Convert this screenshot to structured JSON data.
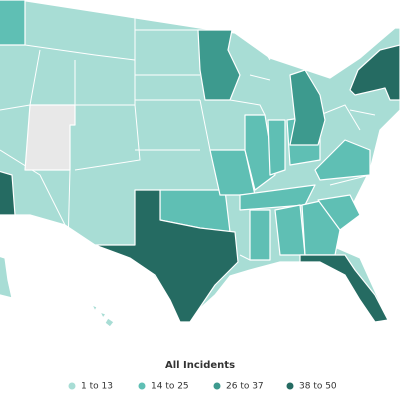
{
  "legend": {
    "title": "All Incidents",
    "items": [
      {
        "label": "1 to 13",
        "color": "#a8ddd5"
      },
      {
        "label": "14 to 25",
        "color": "#5fbfb4"
      },
      {
        "label": "26 to 37",
        "color": "#3d9a8e"
      },
      {
        "label": "38 to 50",
        "color": "#256b62"
      }
    ]
  }
}
